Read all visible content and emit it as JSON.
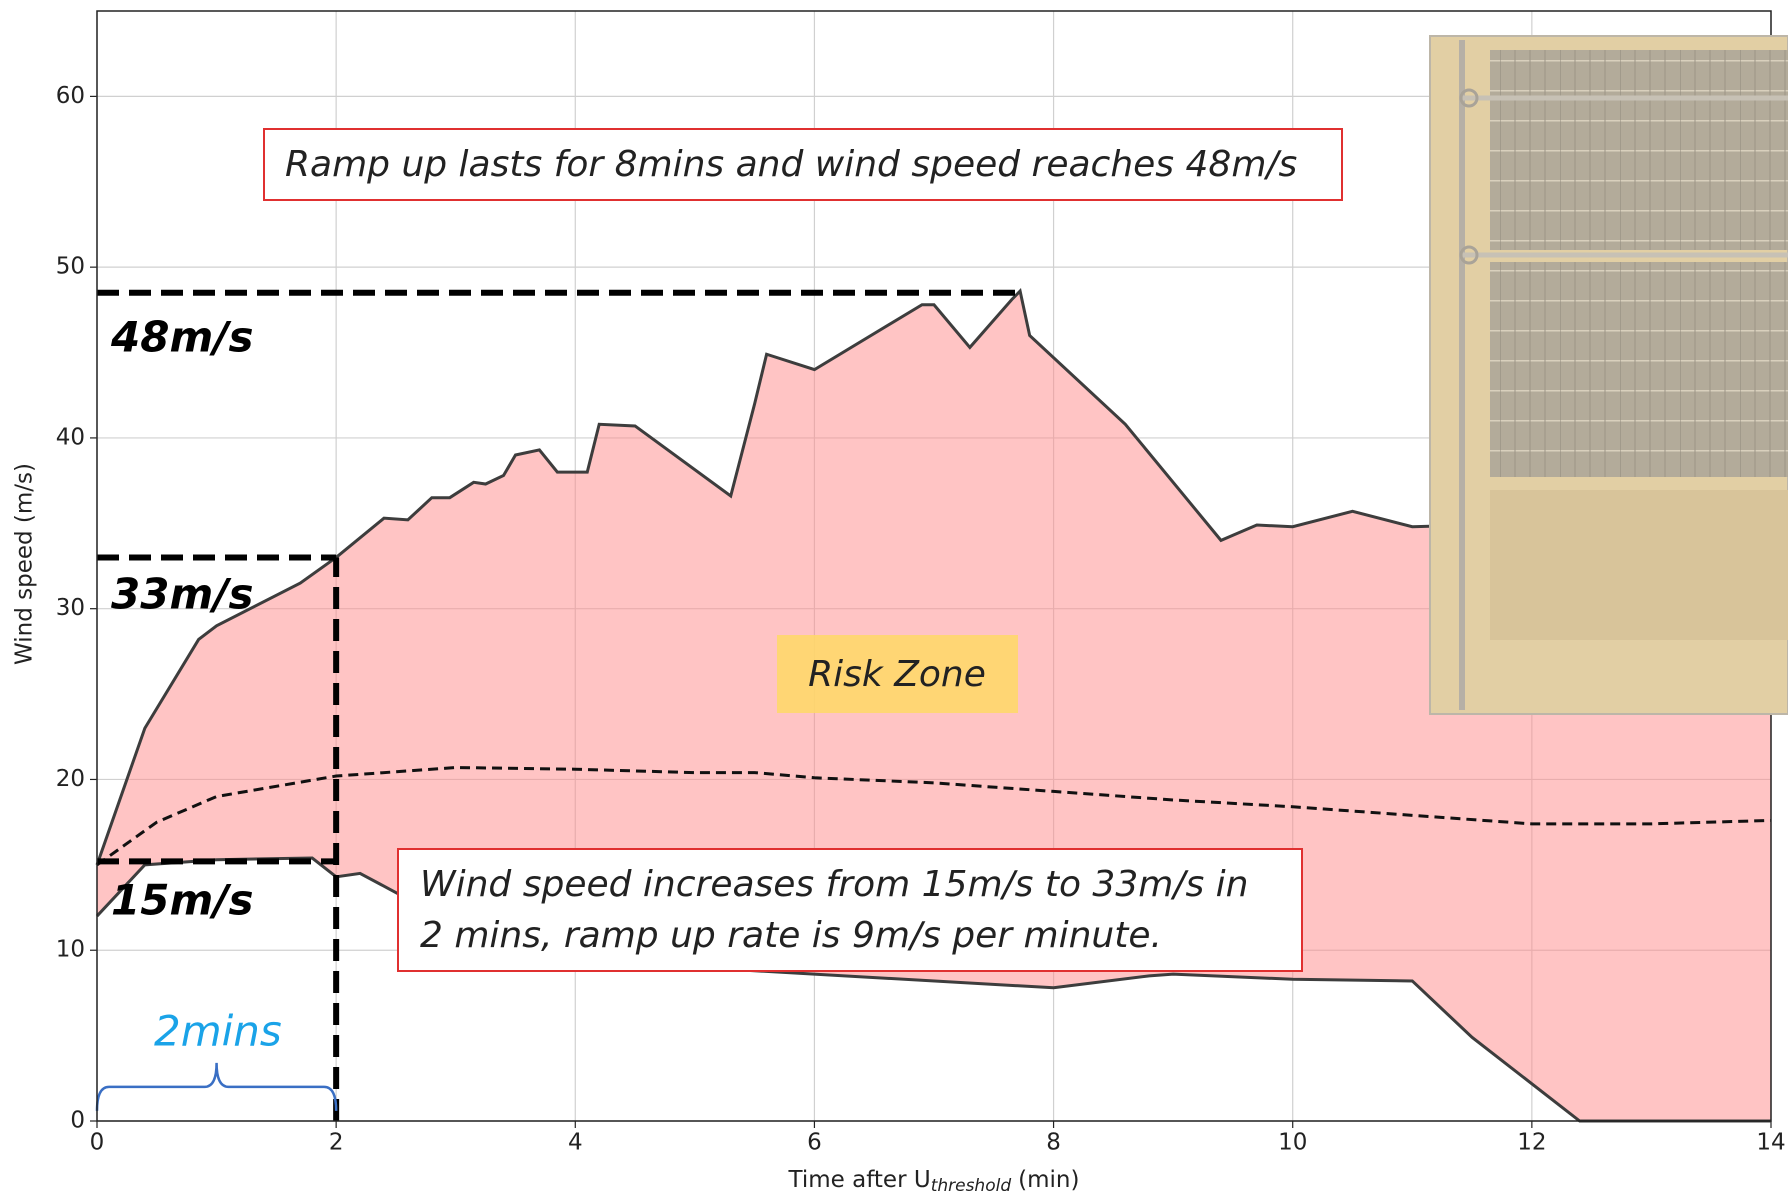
{
  "chart_data": {
    "type": "band",
    "xlabel": {
      "main": "Time after U",
      "sub": "threshold",
      "unit": "(min)"
    },
    "ylabel": "Wind speed (m/s)",
    "xlim": [
      0,
      14
    ],
    "ylim": [
      0,
      65
    ],
    "xticks": [
      0,
      2,
      4,
      6,
      8,
      10,
      12,
      14
    ],
    "yticks": [
      0,
      10,
      20,
      30,
      40,
      50,
      60
    ],
    "grid": true,
    "fill_color": "#ff8a8a",
    "series": [
      {
        "color": "#3d3d3d",
        "style": "solid",
        "x": [
          0,
          0.4,
          0.85,
          1,
          1.7,
          2,
          2.4,
          2.6,
          2.8,
          2.95,
          3.15,
          3.25,
          3.4,
          3.5,
          3.7,
          3.85,
          4.1,
          4.2,
          4.5,
          5.3,
          5.5,
          5.6,
          6,
          6.9,
          7,
          7.3,
          7.65,
          7.72,
          7.8,
          8.6,
          9.4,
          9.5,
          9.7,
          10,
          10.5,
          11,
          12,
          14
        ],
        "values": [
          15,
          23,
          28.2,
          29,
          31.5,
          33,
          35.3,
          35.2,
          36.5,
          36.5,
          37.4,
          37.3,
          37.8,
          39,
          39.3,
          38,
          38,
          40.8,
          40.7,
          36.6,
          42,
          44.9,
          44,
          47.8,
          47.8,
          45.3,
          48.1,
          48.6,
          46,
          40.8,
          34,
          34.3,
          34.9,
          34.8,
          35.7,
          34.8,
          35,
          32
        ]
      },
      {
        "color": "#3d3d3d",
        "style": "solid",
        "x": [
          0,
          0.4,
          1,
          1.8,
          2,
          2.2,
          2.6,
          3,
          5,
          8,
          8.8,
          9,
          10,
          11,
          11.5,
          12.4,
          14
        ],
        "values": [
          12,
          15,
          15.3,
          15.4,
          14.3,
          14.5,
          13,
          11.5,
          9,
          7.8,
          8.5,
          8.6,
          8.3,
          8.2,
          4.9,
          0,
          0
        ]
      },
      {
        "color": "#111111",
        "style": "dashed",
        "x": [
          0,
          0.5,
          1,
          2,
          3,
          4,
          5,
          5.5,
          6,
          7,
          8,
          9,
          10,
          11,
          12,
          13,
          14
        ],
        "values": [
          15,
          17.5,
          19,
          20.2,
          20.7,
          20.6,
          20.4,
          20.4,
          20.1,
          19.8,
          19.3,
          18.8,
          18.4,
          17.9,
          17.4,
          17.4,
          17.6
        ]
      }
    ],
    "reference_lines": [
      {
        "x": [
          0,
          7.7
        ],
        "y": [
          48.5,
          48.5
        ]
      },
      {
        "x": [
          0,
          2
        ],
        "y": [
          33,
          33
        ]
      },
      {
        "x": [
          0,
          2
        ],
        "y": [
          15.2,
          15.2
        ]
      },
      {
        "x": [
          2,
          2
        ],
        "y": [
          0,
          33
        ]
      }
    ],
    "brace": {
      "x": [
        0,
        2
      ],
      "y": 2,
      "color": "#3a6fc4"
    },
    "level_labels": [
      "48m/s",
      "33m/s",
      "15m/s"
    ],
    "interval_label": "2mins",
    "zone_label": "Risk Zone",
    "annotations": [
      {
        "lines": [
          "Ramp up lasts for 8mins and wind speed reaches 48m/s"
        ]
      },
      {
        "lines": [
          "Wind speed increases from 15m/s to 33m/s in",
          "2 mins, ramp up rate is 9m/s per minute."
        ]
      }
    ]
  }
}
